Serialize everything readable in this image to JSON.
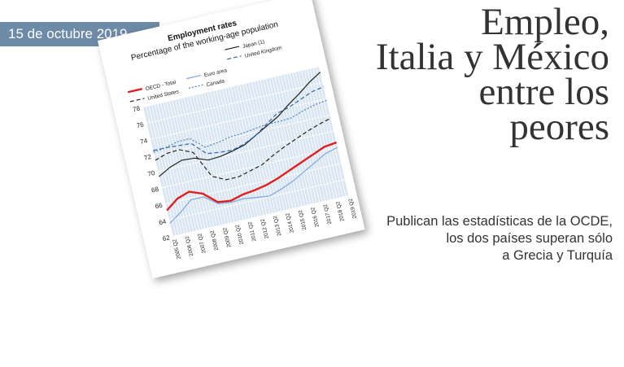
{
  "date": "15 de octubre 2019",
  "headline": [
    "Empleo,",
    "Italia y México",
    "entre los",
    "peores"
  ],
  "subhead": [
    "Publican las estadísticas de la OCDE,",
    "los dos países superan sólo",
    "a Grecia y Turquía"
  ],
  "chart_data": {
    "type": "line",
    "title": "Employment rates",
    "subtitle": "Percentage of the working-age population",
    "ylim": [
      62,
      78
    ],
    "yticks": [
      62,
      64,
      66,
      68,
      70,
      72,
      74,
      76,
      78
    ],
    "x": [
      "2005 Q2",
      "2006 Q2",
      "2007 Q2",
      "2008 Q2",
      "2009 Q2",
      "2010 Q2",
      "2011 Q2",
      "2012 Q2",
      "2013 Q2",
      "2014 Q2",
      "2015 Q2",
      "2016 Q2",
      "2017 Q2",
      "2018 Q2",
      "2019 Q2"
    ],
    "grid": true,
    "legend_position": "top",
    "series": [
      {
        "name": "OECD - Total",
        "color": "#e02020",
        "style": "solid-thick",
        "values": [
          65.2,
          66.3,
          66.8,
          66.2,
          64.8,
          64.6,
          65.0,
          65.2,
          65.5,
          66.0,
          66.6,
          67.2,
          67.8,
          68.4,
          68.6
        ]
      },
      {
        "name": "Euro area",
        "color": "#7da7d9",
        "style": "solid",
        "values": [
          63.6,
          64.6,
          65.8,
          65.8,
          64.6,
          64.4,
          64.5,
          64.3,
          64.1,
          64.6,
          65.2,
          66.0,
          66.8,
          67.6,
          68.0
        ]
      },
      {
        "name": "United States",
        "color": "#222222",
        "style": "dashed",
        "values": [
          71.4,
          71.9,
          72.0,
          71.3,
          68.0,
          67.2,
          67.2,
          67.6,
          68.0,
          68.8,
          69.5,
          70.1,
          70.7,
          71.2,
          71.6
        ]
      },
      {
        "name": "Japan (1)",
        "color": "#222222",
        "style": "solid",
        "values": [
          69.4,
          70.2,
          70.7,
          70.6,
          70.0,
          70.1,
          70.4,
          70.8,
          71.6,
          72.4,
          73.2,
          74.3,
          75.3,
          76.4,
          77.3
        ]
      },
      {
        "name": "Canada",
        "color": "#5580b8",
        "style": "dotted",
        "values": [
          72.4,
          72.6,
          73.0,
          73.0,
          71.6,
          71.8,
          72.1,
          72.2,
          72.4,
          72.6,
          72.6,
          72.7,
          73.2,
          73.6,
          73.8
        ]
      },
      {
        "name": "United Kingdom",
        "color": "#3366aa",
        "style": "dashed",
        "values": [
          72.6,
          72.6,
          72.5,
          72.4,
          70.8,
          70.6,
          70.5,
          70.9,
          71.6,
          72.6,
          73.6,
          74.0,
          74.6,
          75.2,
          75.5
        ]
      }
    ]
  }
}
